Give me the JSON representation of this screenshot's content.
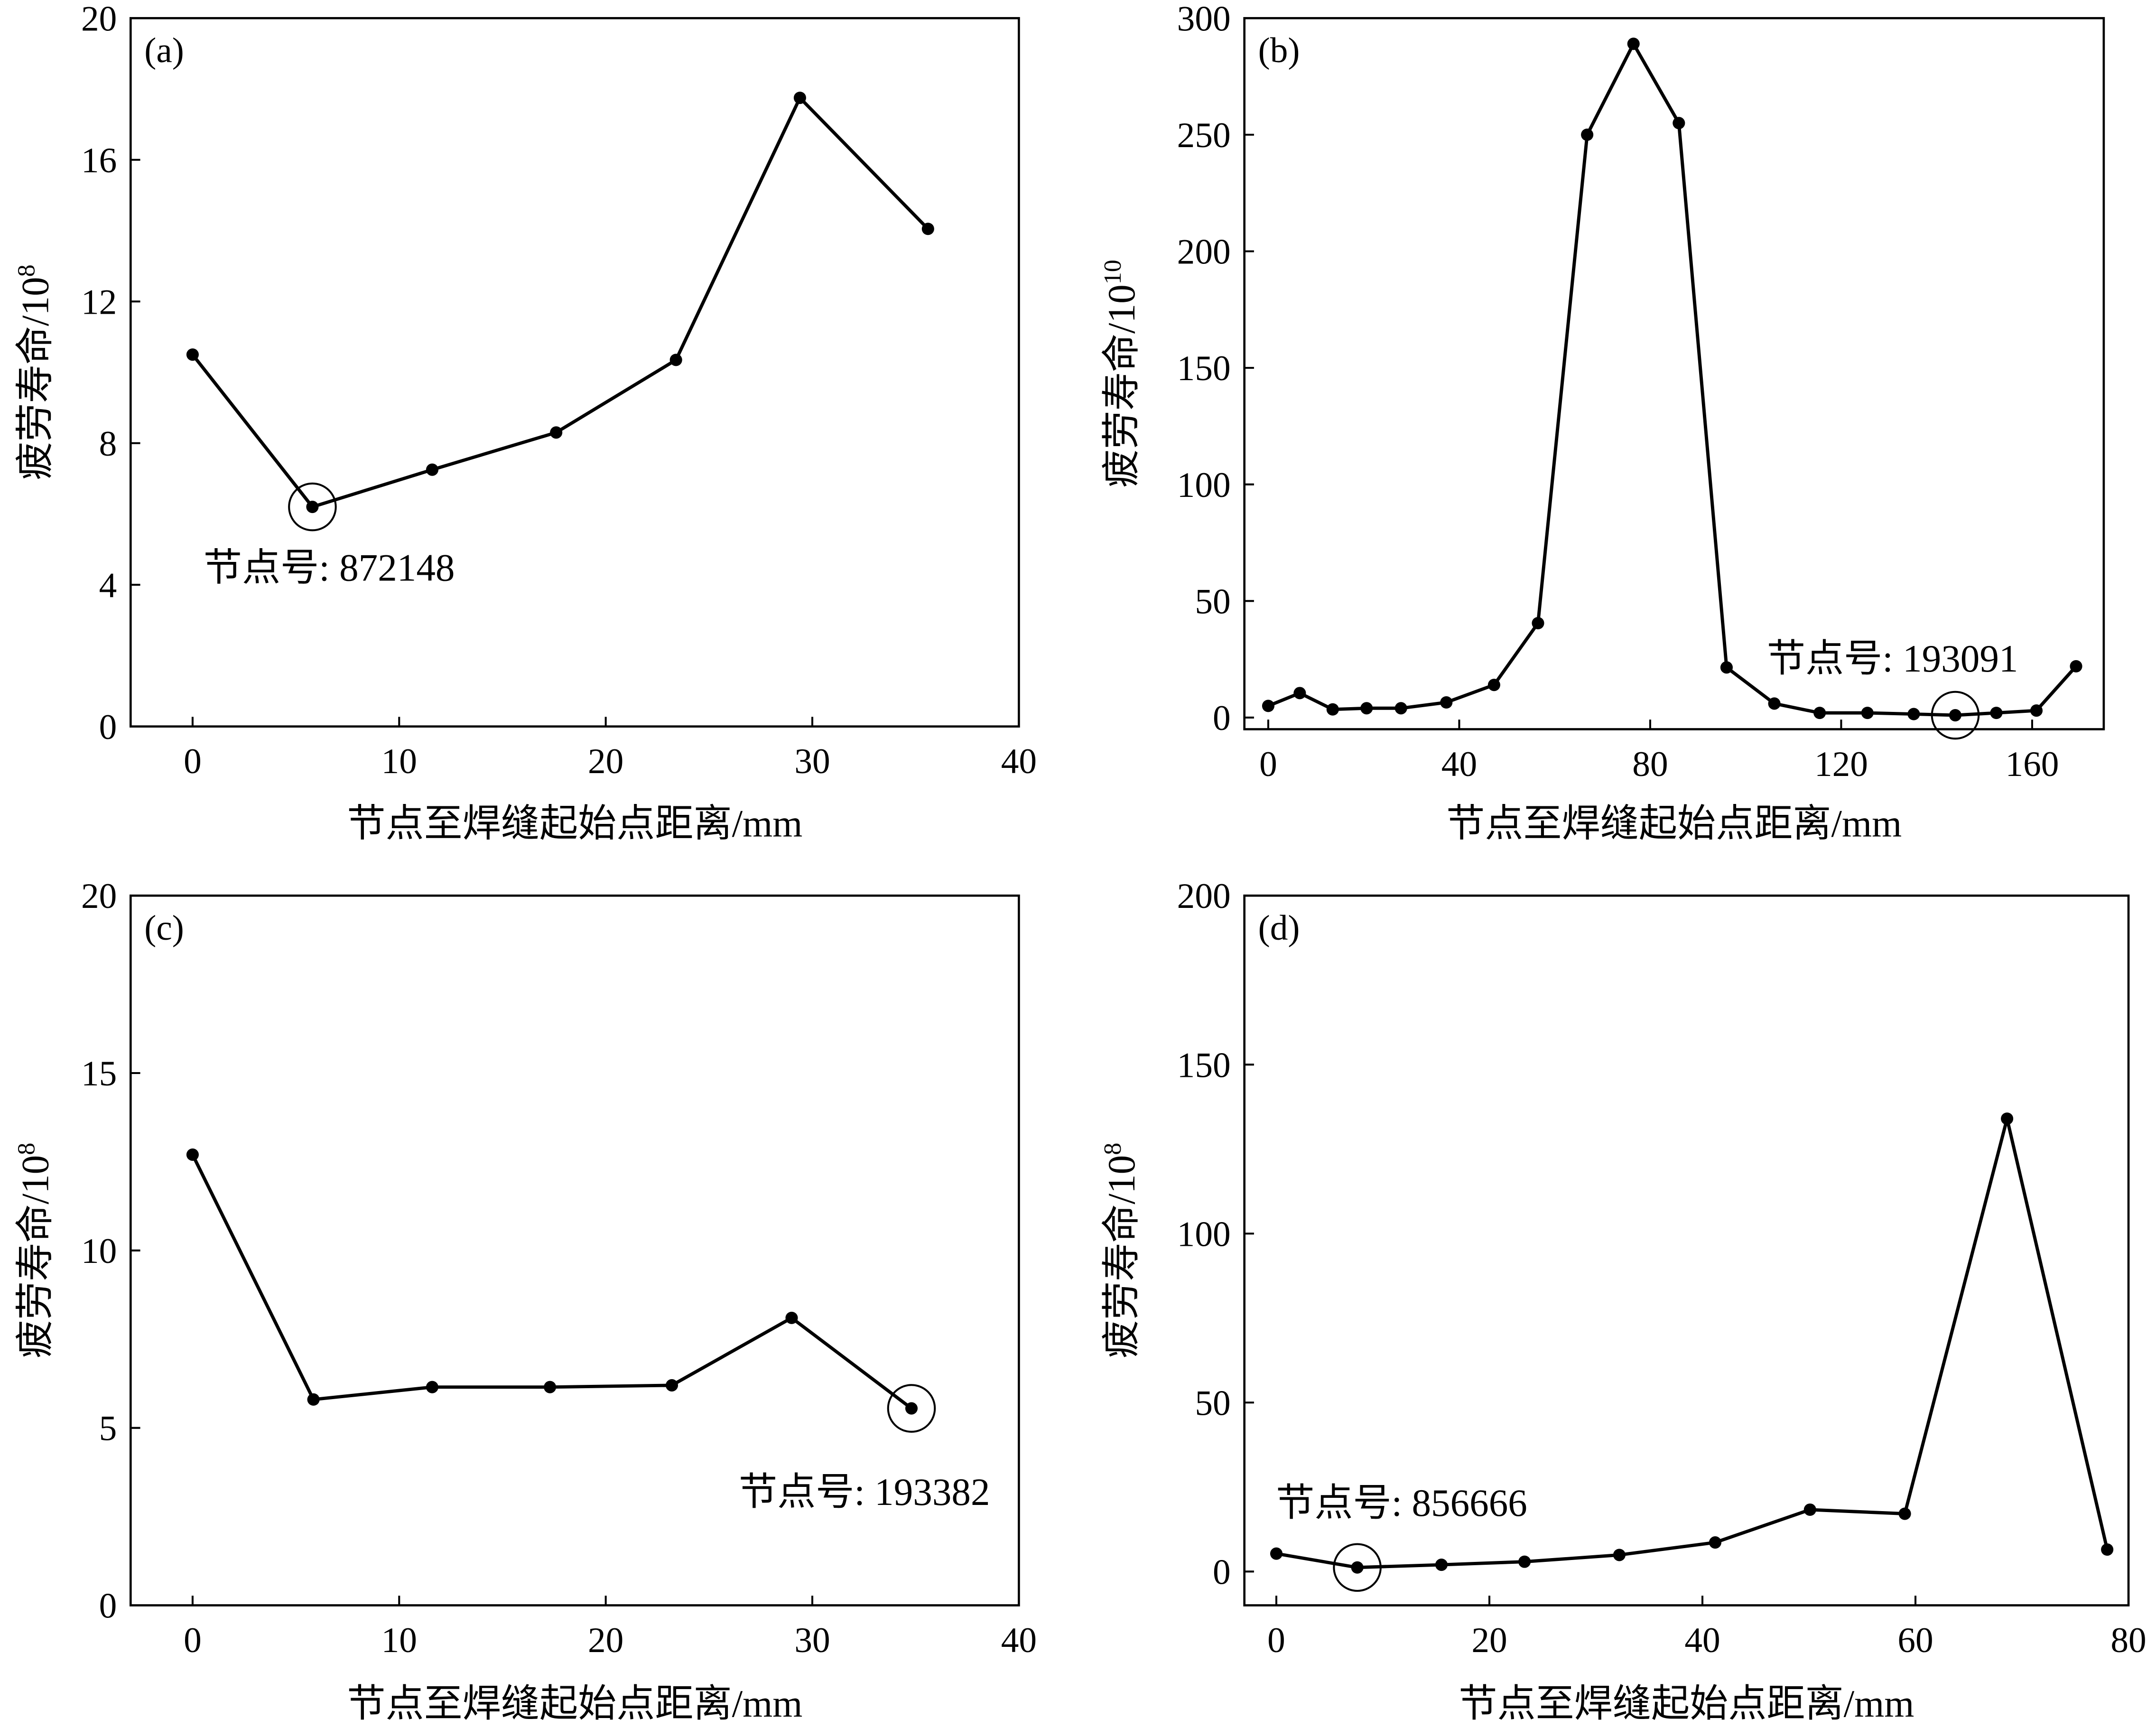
{
  "chart_data": [
    {
      "panel": "(a)",
      "type": "line",
      "xlabel": "节点至焊缝起始点距离/mm",
      "ylabel_base": "疲劳寿命/10",
      "ylabel_exp": "8",
      "xlim": [
        -3,
        40
      ],
      "ylim": [
        0,
        20
      ],
      "xticks": [
        0,
        10,
        20,
        30,
        40
      ],
      "yticks": [
        0,
        4,
        8,
        12,
        16,
        20
      ],
      "x": [
        0,
        5.8,
        11.6,
        17.6,
        23.4,
        29.4,
        35.6
      ],
      "y": [
        10.5,
        6.2,
        7.25,
        8.3,
        10.35,
        17.75,
        14.05
      ],
      "highlight_index": 1,
      "annotation": "节点号: 872148"
    },
    {
      "panel": "(b)",
      "type": "line",
      "xlabel": "节点至焊缝起始点距离/mm",
      "ylabel_base": "疲劳寿命/10",
      "ylabel_exp": "10",
      "xlim": [
        -5,
        175
      ],
      "ylim": [
        -5,
        300
      ],
      "xticks": [
        0,
        40,
        80,
        120,
        160
      ],
      "yticks": [
        0,
        50,
        100,
        150,
        200,
        250,
        300
      ],
      "x": [
        0,
        6.6,
        13.5,
        20.6,
        27.8,
        37.3,
        47.3,
        56.5,
        66.8,
        76.5,
        86.0,
        96.0,
        106,
        115.5,
        125.5,
        135.2,
        143.9,
        152.5,
        160.9,
        169.2
      ],
      "y": [
        5,
        10.5,
        3.5,
        4,
        4,
        6.5,
        14,
        40.5,
        250,
        289,
        255,
        21.5,
        6,
        2,
        2,
        1.5,
        1,
        2,
        3,
        22
      ],
      "highlight_index": 16,
      "annotation": "节点号: 193091"
    },
    {
      "panel": "(c)",
      "type": "line",
      "xlabel": "节点至焊缝起始点距离/mm",
      "ylabel_base": "疲劳寿命/10",
      "ylabel_exp": "8",
      "xlim": [
        -3,
        40
      ],
      "ylim": [
        0,
        20
      ],
      "xticks": [
        0,
        10,
        20,
        30,
        40
      ],
      "yticks": [
        0,
        5,
        10,
        15,
        20
      ],
      "x": [
        0,
        5.85,
        11.6,
        17.3,
        23.2,
        29,
        34.8
      ],
      "y": [
        12.7,
        5.8,
        6.15,
        6.15,
        6.2,
        8.1,
        5.55
      ],
      "highlight_index": 6,
      "annotation": "节点号: 193382"
    },
    {
      "panel": "(d)",
      "type": "line",
      "xlabel": "节点至焊缝起始点距离/mm",
      "ylabel_base": "疲劳寿命/10",
      "ylabel_exp": "8",
      "xlim": [
        -3,
        80
      ],
      "ylim": [
        -10,
        200
      ],
      "xticks": [
        0,
        20,
        40,
        60,
        80
      ],
      "yticks": [
        0,
        50,
        100,
        150,
        200
      ],
      "x": [
        0,
        7.6,
        15.5,
        23.3,
        32.2,
        41.2,
        50.1,
        59,
        68.6,
        78
      ],
      "y": [
        5.3,
        1.2,
        2,
        2.9,
        4.9,
        8.6,
        18.3,
        17.1,
        134,
        6.5
      ],
      "highlight_index": 1,
      "annotation": "节点号: 856666"
    }
  ]
}
